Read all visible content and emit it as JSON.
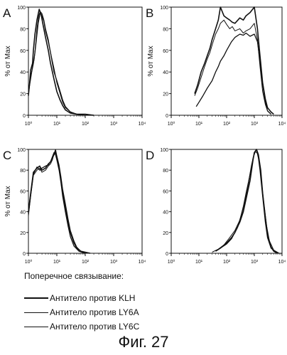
{
  "figure_caption": "Фиг. 27",
  "legend": {
    "title": "Поперечное связывание:",
    "items": [
      {
        "label": "Антитело против KLH"
      },
      {
        "label": "Антитело против LY6A"
      },
      {
        "label": "Антитело против LY6C"
      }
    ]
  },
  "chart_data": [
    {
      "panel_label": "A",
      "type": "line",
      "x_scale": "log",
      "xlim": [
        1,
        10000
      ],
      "ylim": [
        0,
        100
      ],
      "ylabel": "% от Max",
      "ytick_labels": [
        "0",
        "20",
        "40",
        "60",
        "80",
        "100"
      ],
      "xtick_labels": [
        "10⁰",
        "10¹",
        "10²",
        "10³",
        "10⁴"
      ],
      "series": [
        {
          "x": [
            1,
            1.1,
            1.2,
            1.4,
            1.5,
            1.7,
            2,
            2.4,
            2.8,
            3.2,
            4,
            5,
            6,
            8,
            10,
            13,
            16,
            20,
            30,
            50,
            80,
            100,
            200
          ],
          "y": [
            18,
            30,
            42,
            48,
            60,
            75,
            88,
            98,
            93,
            85,
            72,
            60,
            48,
            33,
            22,
            14,
            9,
            5,
            2,
            1,
            1,
            1,
            0
          ]
        },
        {
          "x": [
            1,
            1.2,
            1.4,
            1.6,
            1.8,
            2,
            2.3,
            2.6,
            3,
            3.5,
            4,
            5,
            6,
            8,
            10,
            13,
            16,
            20,
            30,
            50,
            100,
            200
          ],
          "y": [
            22,
            35,
            45,
            52,
            66,
            80,
            92,
            96,
            94,
            88,
            80,
            70,
            58,
            43,
            30,
            20,
            12,
            7,
            3,
            1,
            1,
            0
          ]
        },
        {
          "x": [
            1,
            1.1,
            1.3,
            1.5,
            1.7,
            1.9,
            2.2,
            2.6,
            3,
            3.5,
            4,
            5,
            6,
            7,
            8,
            10,
            13,
            16,
            20,
            30,
            50,
            100,
            200
          ],
          "y": [
            20,
            28,
            40,
            48,
            58,
            70,
            85,
            95,
            92,
            87,
            78,
            68,
            58,
            48,
            40,
            32,
            22,
            14,
            8,
            3,
            1,
            0,
            0
          ]
        }
      ]
    },
    {
      "panel_label": "B",
      "type": "line",
      "x_scale": "log",
      "xlim": [
        1,
        10000
      ],
      "ylim": [
        0,
        100
      ],
      "ylabel": "% от Max",
      "ytick_labels": [
        "0",
        "20",
        "40",
        "60",
        "80",
        "100"
      ],
      "xtick_labels": [
        "10⁰",
        "10¹",
        "10²",
        "10³",
        "10⁴"
      ],
      "series": [
        {
          "x": [
            7,
            9,
            12,
            16,
            20,
            25,
            30,
            40,
            50,
            60,
            80,
            100,
            130,
            160,
            200,
            300,
            400,
            500,
            700,
            1000,
            1300,
            1600,
            2000,
            2500,
            3000,
            4000,
            5000
          ],
          "y": [
            20,
            28,
            40,
            48,
            55,
            62,
            70,
            80,
            88,
            100,
            92,
            90,
            88,
            86,
            85,
            90,
            88,
            92,
            95,
            100,
            80,
            55,
            30,
            15,
            7,
            3,
            1
          ]
        },
        {
          "x": [
            7,
            9,
            12,
            16,
            20,
            25,
            30,
            40,
            50,
            60,
            80,
            100,
            130,
            160,
            200,
            300,
            400,
            500,
            700,
            1000,
            1300,
            1600,
            2000,
            2500,
            3000,
            4000
          ],
          "y": [
            18,
            25,
            35,
            45,
            52,
            58,
            65,
            75,
            80,
            85,
            88,
            84,
            80,
            82,
            78,
            80,
            76,
            78,
            80,
            85,
            70,
            45,
            22,
            10,
            4,
            1
          ]
        },
        {
          "x": [
            8,
            10,
            14,
            20,
            30,
            40,
            50,
            60,
            80,
            100,
            150,
            200,
            300,
            400,
            500,
            700,
            1000,
            1300,
            1600,
            2000,
            2500,
            3000,
            4000
          ],
          "y": [
            8,
            12,
            18,
            25,
            32,
            40,
            45,
            50,
            55,
            60,
            68,
            72,
            75,
            74,
            76,
            73,
            75,
            68,
            50,
            28,
            12,
            4,
            1
          ]
        }
      ]
    },
    {
      "panel_label": "C",
      "type": "line",
      "x_scale": "log",
      "xlim": [
        1,
        10000
      ],
      "ylim": [
        0,
        100
      ],
      "ylabel": "% от Max",
      "ytick_labels": [
        "0",
        "20",
        "40",
        "60",
        "80",
        "100"
      ],
      "xtick_labels": [
        "10⁰",
        "10¹",
        "10²",
        "10³",
        "10⁴"
      ],
      "series": [
        {
          "x": [
            1,
            1.2,
            1.5,
            2,
            2.5,
            3,
            4,
            5,
            6,
            7,
            8,
            9,
            10,
            12,
            14,
            16,
            20,
            25,
            30,
            40,
            50,
            70,
            100,
            150
          ],
          "y": [
            40,
            58,
            78,
            82,
            84,
            80,
            82,
            86,
            88,
            92,
            95,
            98,
            92,
            82,
            70,
            58,
            45,
            30,
            20,
            10,
            5,
            2,
            1,
            0
          ]
        },
        {
          "x": [
            1,
            1.2,
            1.5,
            2,
            2.5,
            3,
            4,
            5,
            6,
            7,
            8,
            9,
            10,
            12,
            14,
            16,
            20,
            25,
            30,
            40,
            50,
            70,
            100
          ],
          "y": [
            36,
            55,
            75,
            80,
            82,
            78,
            80,
            84,
            86,
            90,
            96,
            100,
            94,
            85,
            74,
            62,
            48,
            33,
            22,
            12,
            6,
            2,
            0
          ]
        },
        {
          "x": [
            1,
            1.2,
            1.5,
            2,
            2.5,
            3,
            4,
            5,
            6,
            7,
            8,
            9,
            10,
            12,
            14,
            16,
            20,
            25,
            30,
            40,
            60,
            100
          ],
          "y": [
            38,
            56,
            76,
            83,
            80,
            82,
            84,
            85,
            88,
            93,
            97,
            95,
            90,
            80,
            68,
            55,
            40,
            26,
            16,
            7,
            2,
            0
          ]
        }
      ]
    },
    {
      "panel_label": "D",
      "type": "line",
      "x_scale": "log",
      "xlim": [
        1,
        10000
      ],
      "ylim": [
        0,
        100
      ],
      "ylabel": "",
      "ytick_labels": [
        "0",
        "20",
        "40",
        "60",
        "80",
        "100"
      ],
      "xtick_labels": [
        "10⁰",
        "10¹",
        "10²",
        "10³",
        "10⁴"
      ],
      "series": [
        {
          "x": [
            40,
            60,
            100,
            150,
            200,
            300,
            400,
            500,
            700,
            900,
            1000,
            1200,
            1400,
            1700,
            2000,
            2500,
            3000,
            4000,
            5000,
            7000
          ],
          "y": [
            2,
            5,
            10,
            15,
            20,
            30,
            40,
            52,
            70,
            90,
            97,
            100,
            95,
            80,
            58,
            35,
            18,
            6,
            2,
            0
          ]
        },
        {
          "x": [
            30,
            50,
            80,
            120,
            200,
            300,
            400,
            500,
            700,
            900,
            1100,
            1300,
            1500,
            1800,
            2200,
            2800,
            3500,
            5000,
            8000
          ],
          "y": [
            1,
            4,
            8,
            14,
            22,
            32,
            45,
            58,
            76,
            92,
            98,
            96,
            88,
            70,
            48,
            26,
            12,
            3,
            0
          ]
        },
        {
          "x": [
            40,
            60,
            100,
            150,
            250,
            350,
            450,
            600,
            800,
            1000,
            1200,
            1400,
            1600,
            2000,
            2500,
            3000,
            4000,
            6000
          ],
          "y": [
            2,
            5,
            9,
            14,
            25,
            38,
            50,
            66,
            85,
            96,
            100,
            92,
            80,
            55,
            30,
            15,
            5,
            1
          ]
        }
      ]
    }
  ]
}
